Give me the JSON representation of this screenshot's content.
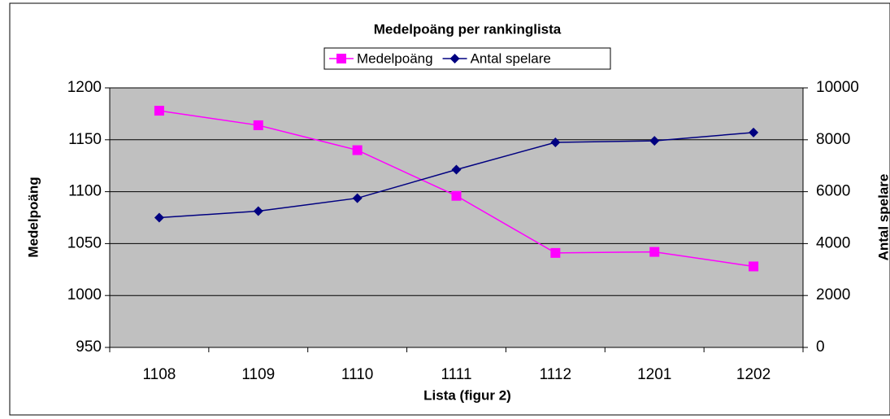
{
  "chart_data": {
    "type": "line",
    "title": "Medelpoäng per rankinglista",
    "x_label": "Lista (figur 2)",
    "y_label": "Medelpoäng",
    "y2_label": "Antal spelare",
    "categories": [
      "1108",
      "1109",
      "1110",
      "1111",
      "1112",
      "1201",
      "1202"
    ],
    "series": [
      {
        "name": "Medelpoäng",
        "color": "#ff00ff",
        "marker": "square",
        "values": [
          1178,
          1164,
          1140,
          1096,
          1041,
          1042,
          1028
        ]
      },
      {
        "name": "Antal spelare",
        "color": "#000080",
        "marker": "diamond",
        "axis": "y2",
        "values": [
          5000,
          5250,
          5750,
          6850,
          7900,
          7960,
          8280
        ]
      }
    ],
    "ylim": [
      950,
      1200
    ],
    "yticks": [
      950,
      1000,
      1050,
      1100,
      1150,
      1200
    ],
    "y2lim": [
      0,
      10000
    ],
    "y2ticks": [
      0,
      2000,
      4000,
      6000,
      8000,
      10000
    ],
    "grid": true,
    "legend": "top",
    "plot_background": "#c0c0c0"
  }
}
